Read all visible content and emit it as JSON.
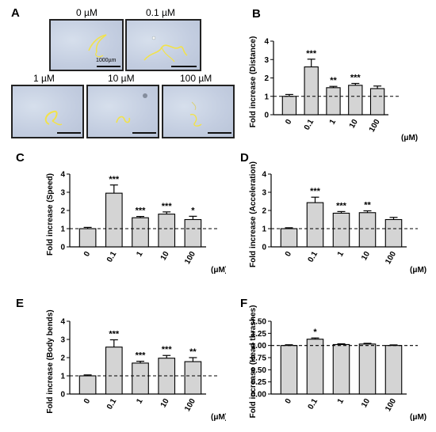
{
  "panel_a": {
    "letter": "A",
    "images": [
      {
        "label": "0 µM",
        "scale_text": "1000µm"
      },
      {
        "label": "0.1 µM"
      },
      {
        "label": "1 µM"
      },
      {
        "label": "10 µM"
      },
      {
        "label": "100 µM"
      }
    ]
  },
  "chart_data": [
    {
      "panel": "B",
      "type": "bar",
      "categories": [
        "0",
        "0.1",
        "1",
        "10",
        "100"
      ],
      "values": [
        1.0,
        2.6,
        1.47,
        1.6,
        1.42
      ],
      "errors": [
        0.1,
        0.42,
        0.07,
        0.1,
        0.14
      ],
      "significance": [
        "",
        "***",
        "**",
        "***",
        ""
      ],
      "ylabel": "Fold increase (Distance)",
      "unit": "(μM)",
      "ylim": [
        0,
        4
      ],
      "yticks": [
        "0",
        "1",
        "2",
        "3",
        "4"
      ],
      "baseline": 1.0
    },
    {
      "panel": "C",
      "type": "bar",
      "categories": [
        "0",
        "0.1",
        "1",
        "10",
        "100"
      ],
      "values": [
        1.0,
        2.95,
        1.6,
        1.8,
        1.5
      ],
      "errors": [
        0.07,
        0.45,
        0.07,
        0.12,
        0.18
      ],
      "significance": [
        "",
        "***",
        "***",
        "***",
        "*"
      ],
      "ylabel": "Fold increase (Speed)",
      "unit": "(μM)",
      "ylim": [
        0,
        4
      ],
      "yticks": [
        "0",
        "1",
        "2",
        "3",
        "4"
      ],
      "baseline": 1.0
    },
    {
      "panel": "D",
      "type": "bar",
      "categories": [
        "0",
        "0.1",
        "1",
        "10",
        "100"
      ],
      "values": [
        1.0,
        2.43,
        1.85,
        1.88,
        1.5
      ],
      "errors": [
        0.05,
        0.3,
        0.09,
        0.1,
        0.12
      ],
      "significance": [
        "",
        "***",
        "***",
        "**",
        ""
      ],
      "ylabel": "Fold increase (Acceleration)",
      "unit": "(μM)",
      "ylim": [
        0,
        4
      ],
      "yticks": [
        "0",
        "1",
        "2",
        "3",
        "4"
      ],
      "baseline": 1.0
    },
    {
      "panel": "E",
      "type": "bar",
      "categories": [
        "0",
        "0.1",
        "1",
        "10",
        "100"
      ],
      "values": [
        1.0,
        2.58,
        1.7,
        1.97,
        1.78
      ],
      "errors": [
        0.05,
        0.4,
        0.1,
        0.15,
        0.22
      ],
      "significance": [
        "",
        "***",
        "***",
        "***",
        "**"
      ],
      "ylabel": "Fold increase (Body bends)",
      "unit": "(μM)",
      "ylim": [
        0,
        4
      ],
      "yticks": [
        "0",
        "1",
        "2",
        "3",
        "4"
      ],
      "baseline": 1.0
    },
    {
      "panel": "F",
      "type": "bar",
      "categories": [
        "0",
        "0.1",
        "1",
        "10",
        "100"
      ],
      "values": [
        1.0,
        1.13,
        1.02,
        1.03,
        1.0
      ],
      "errors": [
        0.015,
        0.025,
        0.015,
        0.015,
        0.012
      ],
      "significance": [
        "",
        "*",
        "",
        "",
        ""
      ],
      "ylabel": "Fold increase (Head thrashes)",
      "unit": "(μM)",
      "ylim": [
        0,
        1.5
      ],
      "yticks": [
        "0.00",
        "0.25",
        "0.50",
        "0.75",
        "1.00",
        "1.25",
        "1.50"
      ],
      "baseline": 1.0
    }
  ]
}
